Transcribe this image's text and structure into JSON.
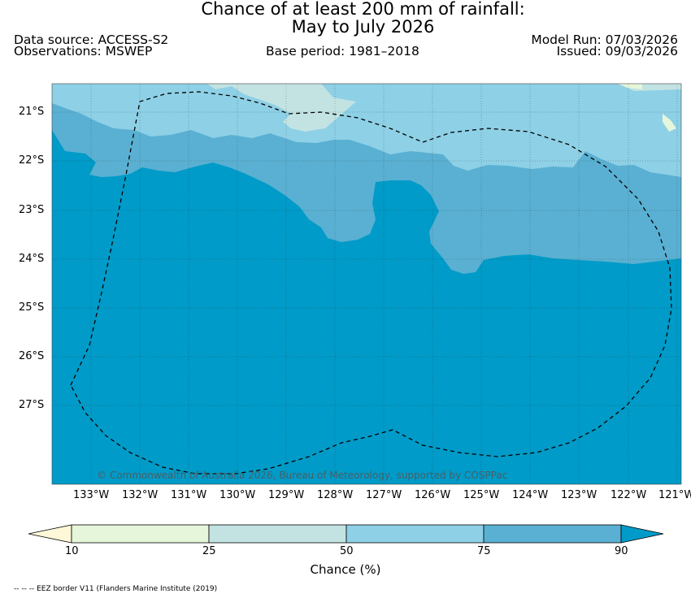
{
  "header": {
    "title_line1": "Chance of at least 200 mm of rainfall:",
    "title_line2": "May to July 2026",
    "data_source": "Data source: ACCESS-S2",
    "observations": "Observations: MSWEP",
    "base_period": "Base period: 1981–2018",
    "model_run": "Model Run: 07/03/2026",
    "issued": "Issued: 09/03/2026"
  },
  "map": {
    "latitude_labels": [
      "21°S",
      "22°S",
      "23°S",
      "24°S",
      "25°S",
      "26°S",
      "27°S"
    ],
    "longitude_labels": [
      "133°W",
      "132°W",
      "131°W",
      "130°W",
      "129°W",
      "128°W",
      "127°W",
      "126°W",
      "125°W",
      "124°W",
      "123°W",
      "122°W",
      "121°W"
    ],
    "copyright": "© Commonwealth of Australia 2026, Bureau of Meteorology, supported by COSPPac",
    "colors": {
      "below_10": "#fff8d8",
      "c10_25": "#e6f6da",
      "c25_50": "#c3e3e3",
      "c50_75": "#8ed0e6",
      "c75_90": "#5ab0d2",
      "above_90": "#009bc8"
    }
  },
  "colorbar": {
    "tick_labels": [
      "10",
      "25",
      "50",
      "75",
      "90"
    ],
    "label": "Chance (%)"
  },
  "footer": {
    "eez_note": "-- -- -- EEZ border V11 (Flanders Marine Institute (2019)"
  }
}
